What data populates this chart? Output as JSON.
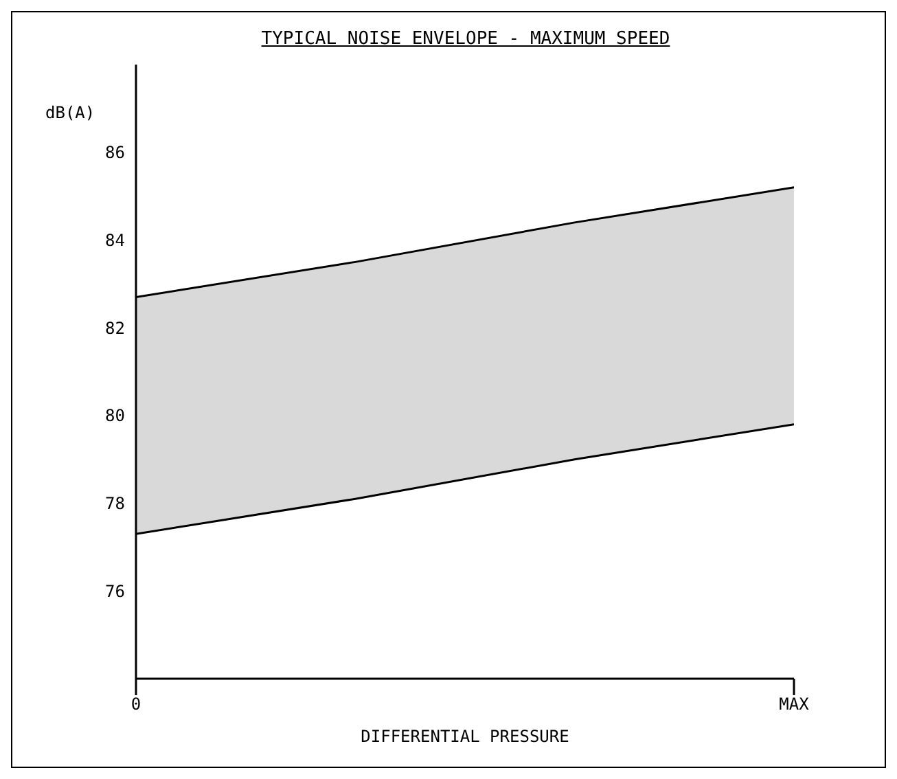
{
  "chart_data": {
    "type": "area",
    "title": "TYPICAL NOISE ENVELOPE - MAXIMUM SPEED",
    "xlabel": "DIFFERENTIAL PRESSURE",
    "ylabel": "dB(A)",
    "categories": [
      "0",
      null,
      null,
      "MAX"
    ],
    "series": [
      {
        "color": "#d9d9d9",
        "values": [
          82.7,
          83.5,
          84.4,
          85.2
        ]
      },
      {
        "color": "#ffffff",
        "values": [
          77.3,
          78.1,
          79.0,
          79.8
        ]
      }
    ],
    "ylim": [
      74,
      88
    ],
    "yticks": [
      76,
      78,
      80,
      82,
      84,
      86
    ],
    "grid": false,
    "legend": false
  }
}
